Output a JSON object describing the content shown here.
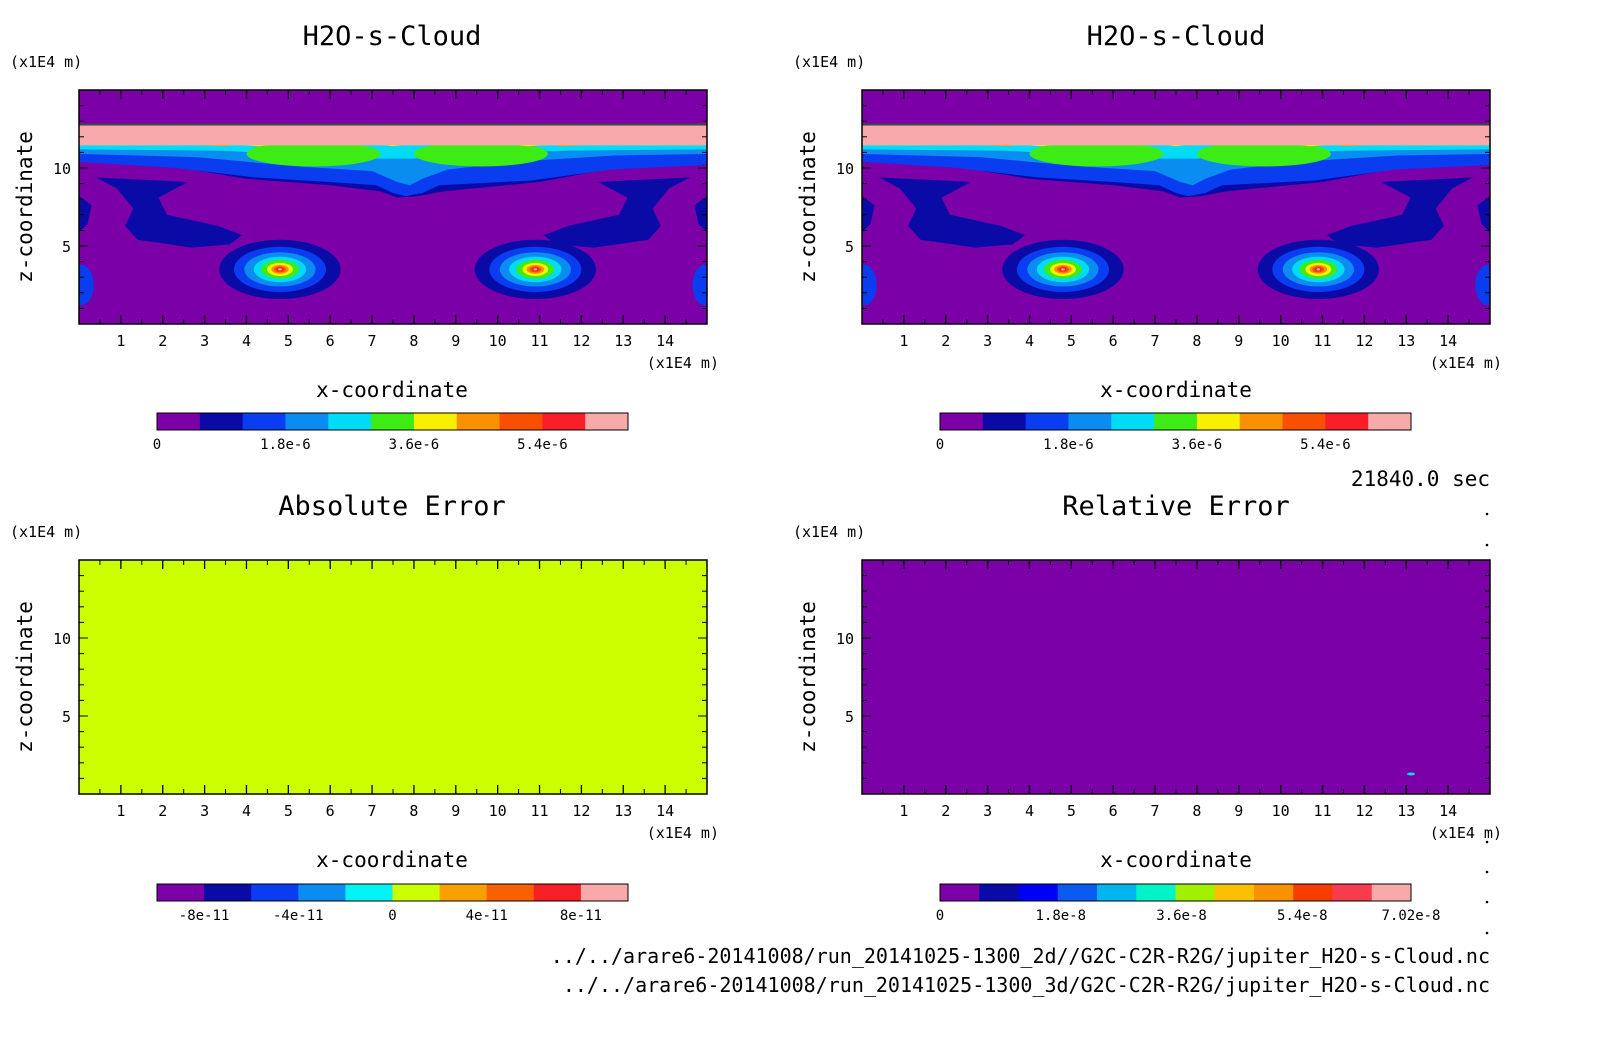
{
  "timestamp": "21840.0 sec",
  "file_paths": [
    "../../arare6-20141008/run_20141025-1300_2d//G2C-C2R-R2G/jupiter_H2O-s-Cloud.nc",
    "../../arare6-20141008/run_20141025-1300_3d/G2C-C2R-R2G/jupiter_H2O-s-Cloud.nc"
  ],
  "chart_data": [
    {
      "type": "heatmap",
      "title": "H2O-s-Cloud",
      "xlabel": "x-coordinate",
      "ylabel": "z-coordinate",
      "x_unit": "(x1E4 m)",
      "y_unit": "(x1E4 m)",
      "xlim": [
        0,
        15
      ],
      "ylim": [
        0,
        15
      ],
      "xticks": [
        "1",
        "2",
        "3",
        "4",
        "5",
        "6",
        "7",
        "8",
        "9",
        "10",
        "11",
        "12",
        "13",
        "14"
      ],
      "yticks": [
        "5",
        "10"
      ],
      "colorbar": {
        "colors": [
          "#7b00a8",
          "#0a0aa6",
          "#0a3cf0",
          "#0a8cf0",
          "#00dcf4",
          "#3cec14",
          "#f8f000",
          "#f89000",
          "#f85000",
          "#f81e28",
          "#f8aaaa"
        ],
        "tick_labels": [
          "0",
          "1.8e-6",
          "3.6e-6",
          "5.4e-6"
        ],
        "tick_values": [
          0,
          1.8e-06,
          3.6e-06,
          5.4e-06
        ],
        "range": [
          0,
          6.6e-06
        ]
      }
    },
    {
      "type": "heatmap",
      "title": "H2O-s-Cloud",
      "xlabel": "x-coordinate",
      "ylabel": "z-coordinate",
      "x_unit": "(x1E4 m)",
      "y_unit": "(x1E4 m)",
      "xlim": [
        0,
        15
      ],
      "ylim": [
        0,
        15
      ],
      "xticks": [
        "1",
        "2",
        "3",
        "4",
        "5",
        "6",
        "7",
        "8",
        "9",
        "10",
        "11",
        "12",
        "13",
        "14"
      ],
      "yticks": [
        "5",
        "10"
      ],
      "colorbar": {
        "colors": [
          "#7b00a8",
          "#0a0aa6",
          "#0a3cf0",
          "#0a8cf0",
          "#00dcf4",
          "#3cec14",
          "#f8f000",
          "#f89000",
          "#f85000",
          "#f81e28",
          "#f8aaaa"
        ],
        "tick_labels": [
          "0",
          "1.8e-6",
          "3.6e-6",
          "5.4e-6"
        ],
        "tick_values": [
          0,
          1.8e-06,
          3.6e-06,
          5.4e-06
        ],
        "range": [
          0,
          6.6e-06
        ]
      }
    },
    {
      "type": "heatmap",
      "title": "Absolute Error",
      "xlabel": "x-coordinate",
      "ylabel": "z-coordinate",
      "x_unit": "(x1E4 m)",
      "y_unit": "(x1E4 m)",
      "xlim": [
        0,
        15
      ],
      "ylim": [
        0,
        15
      ],
      "xticks": [
        "1",
        "2",
        "3",
        "4",
        "5",
        "6",
        "7",
        "8",
        "9",
        "10",
        "11",
        "12",
        "13",
        "14"
      ],
      "yticks": [
        "5",
        "10"
      ],
      "uniform_value": 0,
      "fill_color": "#ccff00",
      "colorbar": {
        "colors": [
          "#7b00a8",
          "#0a0aa6",
          "#0a3cf0",
          "#0a8cf0",
          "#00f4f4",
          "#ccff00",
          "#f8a000",
          "#f86000",
          "#f81e28",
          "#f8aaaa"
        ],
        "tick_labels": [
          "-8e-11",
          "-4e-11",
          "0",
          "4e-11",
          "8e-11"
        ],
        "tick_values": [
          -8e-11,
          -4e-11,
          0,
          4e-11,
          8e-11
        ],
        "range": [
          -1e-10,
          1e-10
        ]
      }
    },
    {
      "type": "heatmap",
      "title": "Relative Error",
      "xlabel": "x-coordinate",
      "ylabel": "z-coordinate",
      "x_unit": "(x1E4 m)",
      "y_unit": "(x1E4 m)",
      "xlim": [
        0,
        15
      ],
      "ylim": [
        0,
        15
      ],
      "xticks": [
        "1",
        "2",
        "3",
        "4",
        "5",
        "6",
        "7",
        "8",
        "9",
        "10",
        "11",
        "12",
        "13",
        "14"
      ],
      "yticks": [
        "5",
        "10"
      ],
      "uniform_value": 0,
      "fill_color": "#7b00a8",
      "colorbar": {
        "colors": [
          "#7b00a8",
          "#0a0aa6",
          "#0000f4",
          "#0a5cf0",
          "#00b4f0",
          "#00f4c8",
          "#a0f000",
          "#f8c000",
          "#f89000",
          "#f83c00",
          "#f83c50",
          "#f8aaaa"
        ],
        "tick_labels": [
          "0",
          "1.8e-8",
          "3.6e-8",
          "5.4e-8",
          "7.02e-8"
        ],
        "tick_values": [
          0,
          1.8e-08,
          3.6e-08,
          5.4e-08,
          7.02e-08
        ],
        "range": [
          0,
          7.02e-08
        ]
      }
    }
  ]
}
